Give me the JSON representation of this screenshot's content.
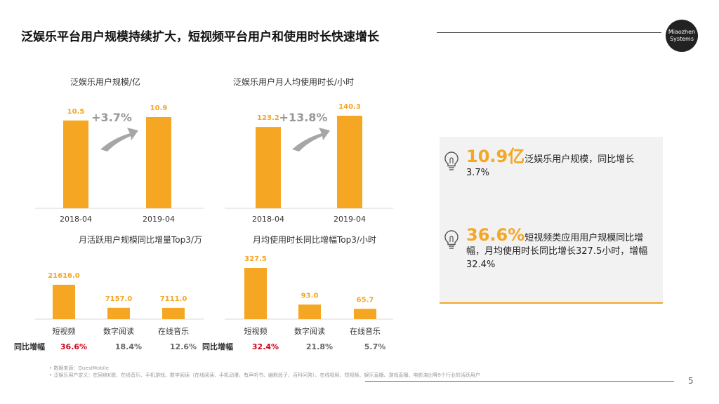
{
  "header": {
    "title": "泛娱乐平台用户规模持续扩大，短视频平台用户和使用时长快速增长",
    "logo_line1": "Miaozhen",
    "logo_line2": "Systems"
  },
  "chart_data": [
    {
      "type": "bar",
      "title": "泛娱乐用户规模/亿",
      "categories": [
        "2018-04",
        "2019-04"
      ],
      "values": [
        10.5,
        10.9
      ],
      "labels": [
        "10.5",
        "10.9"
      ],
      "growth": "+3.7%",
      "color": "#f5a623"
    },
    {
      "type": "bar",
      "title": "泛娱乐用户月人均使用时长/小时",
      "categories": [
        "2018-04",
        "2019-04"
      ],
      "values": [
        123.2,
        140.3
      ],
      "labels": [
        "123.2",
        "140.3"
      ],
      "growth": "+13.8%",
      "color": "#f5a623"
    },
    {
      "type": "bar",
      "title": "月活跃用户规模同比增量Top3/万",
      "categories": [
        "短视频",
        "数字阅读",
        "在线音乐"
      ],
      "values": [
        21616.0,
        7157.0,
        7111.0
      ],
      "labels": [
        "21616.0",
        "7157.0",
        "7111.0"
      ],
      "yoy_label": "同比增幅",
      "yoy": [
        "36.6%",
        "18.4%",
        "12.6%"
      ],
      "color": "#f5a623"
    },
    {
      "type": "bar",
      "title": "月均使用时长同比增幅Top3/小时",
      "categories": [
        "短视频",
        "数字阅读",
        "在线音乐"
      ],
      "values": [
        327.5,
        93.0,
        65.7
      ],
      "labels": [
        "327.5",
        "93.0",
        "65.7"
      ],
      "yoy_label": "同比增幅",
      "yoy": [
        "32.4%",
        "21.8%",
        "5.7%"
      ],
      "color": "#f5a623"
    }
  ],
  "insights": [
    {
      "big": "10.9亿",
      "text": "泛娱乐用户规模，同比增长3.7%",
      "icon": "lightbulb-icon"
    },
    {
      "big": "36.6%",
      "text": "短视频类应用用户规模同比增幅，月均使用时长同比增长327.5小时，增幅32.4%",
      "icon": "lightbulb-icon"
    }
  ],
  "footnotes": [
    "•   数据来源：QuestMobile",
    "•   泛娱乐用户定义：在网络K歌、在线音乐、手机游戏、数字阅读（在线阅读、手机动漫、有声听书、幽默段子、百科问答）、在线视频、短视频、娱乐直播、游戏直播、电影演出等9个行业的活跃用户"
  ],
  "page_number": "5",
  "colors": {
    "accent": "#f5a623",
    "highlight_red": "#d0021b",
    "arrow_grey": "#a6a6a6"
  }
}
